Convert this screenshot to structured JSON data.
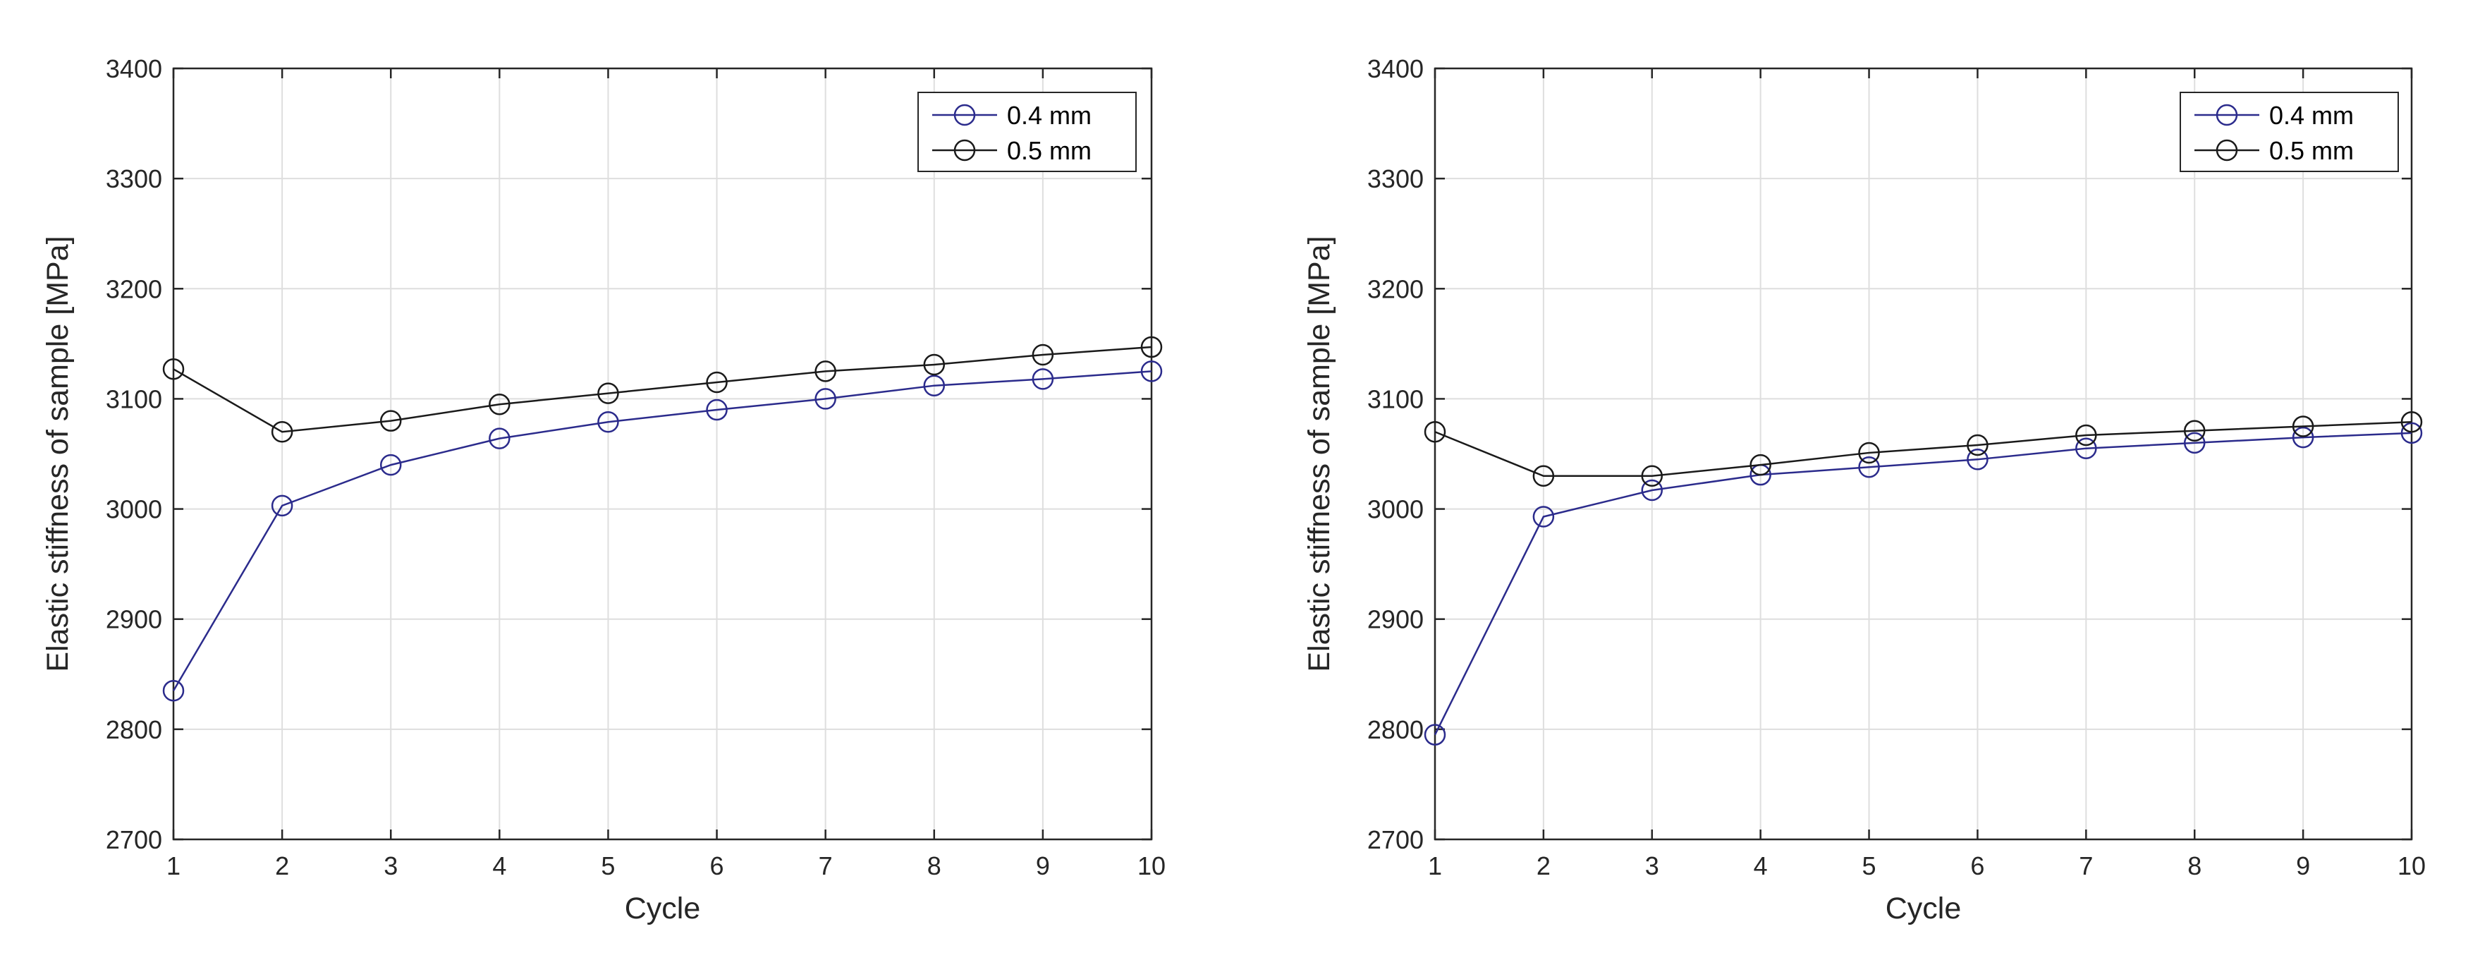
{
  "chart_data": [
    {
      "type": "line",
      "title": "",
      "xlabel": "Cycle",
      "ylabel": "Elastic stiffness of sample [MPa]",
      "x": [
        1,
        2,
        3,
        4,
        5,
        6,
        7,
        8,
        9,
        10
      ],
      "xlim": [
        1,
        10
      ],
      "ylim": [
        2700,
        3400
      ],
      "xticks": [
        1,
        2,
        3,
        4,
        5,
        6,
        7,
        8,
        9,
        10
      ],
      "yticks": [
        2700,
        2800,
        2900,
        3000,
        3100,
        3200,
        3300,
        3400
      ],
      "grid": true,
      "legend_position": "top-right",
      "series": [
        {
          "name": "0.4 mm",
          "color": "#2b2b8c",
          "marker": "circle",
          "values": [
            2835,
            3003,
            3040,
            3064,
            3079,
            3090,
            3100,
            3112,
            3118,
            3125
          ]
        },
        {
          "name": "0.5 mm",
          "color": "#1a1a1a",
          "marker": "circle",
          "values": [
            3127,
            3070,
            3080,
            3095,
            3105,
            3115,
            3125,
            3131,
            3140,
            3147
          ]
        }
      ]
    },
    {
      "type": "line",
      "title": "",
      "xlabel": "Cycle",
      "ylabel": "Elastic stiffness of sample [MPa]",
      "x": [
        1,
        2,
        3,
        4,
        5,
        6,
        7,
        8,
        9,
        10
      ],
      "xlim": [
        1,
        10
      ],
      "ylim": [
        2700,
        3400
      ],
      "xticks": [
        1,
        2,
        3,
        4,
        5,
        6,
        7,
        8,
        9,
        10
      ],
      "yticks": [
        2700,
        2800,
        2900,
        3000,
        3100,
        3200,
        3300,
        3400
      ],
      "grid": true,
      "legend_position": "top-right",
      "series": [
        {
          "name": "0.4 mm",
          "color": "#2b2b8c",
          "marker": "circle",
          "values": [
            2795,
            2993,
            3017,
            3031,
            3038,
            3045,
            3055,
            3060,
            3065,
            3069
          ]
        },
        {
          "name": "0.5 mm",
          "color": "#1a1a1a",
          "marker": "circle",
          "values": [
            3070,
            3030,
            3030,
            3040,
            3051,
            3058,
            3067,
            3071,
            3075,
            3079
          ]
        }
      ]
    }
  ]
}
